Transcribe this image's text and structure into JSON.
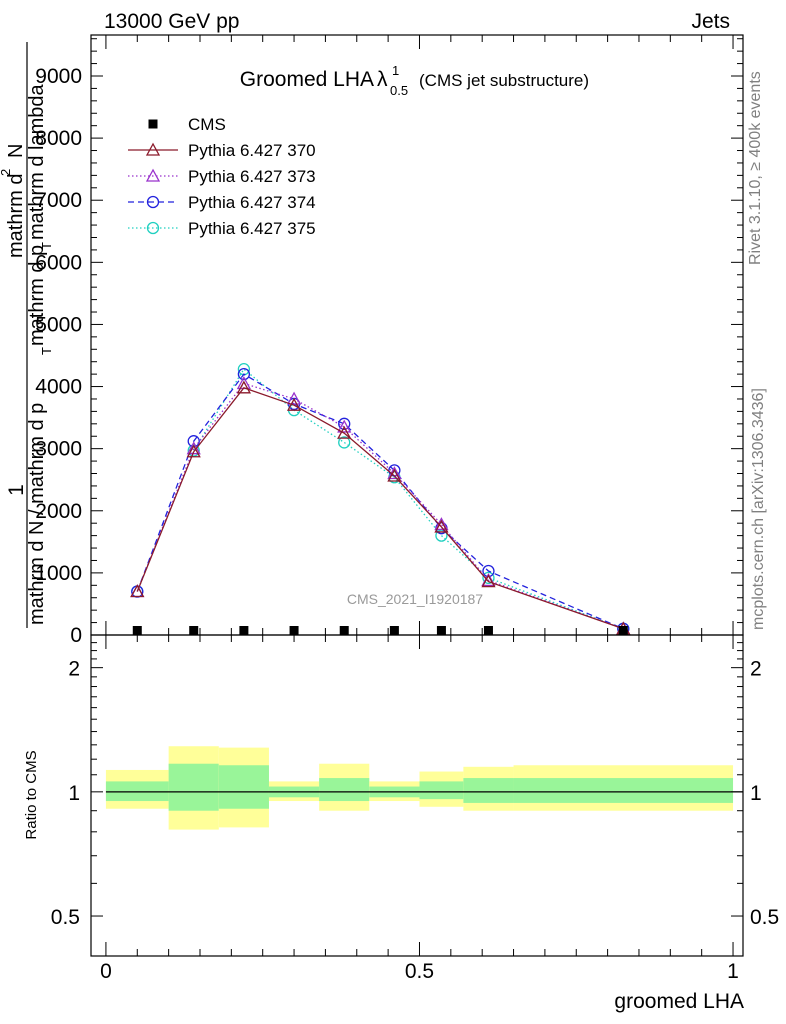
{
  "header": {
    "left_label": "13000 GeV pp",
    "right_label": "Jets"
  },
  "side": {
    "rivet_label": "Rivet 3.1.10, ≥ 400k events",
    "mcplots_label": "mcplots.cern.ch [arXiv:1306.3436]"
  },
  "chart_data": [
    {
      "type": "line",
      "title_main": "Groomed LHA",
      "title_symbol": "λ",
      "title_sup": "1",
      "title_sub": "0.5",
      "title_note": "(CMS jet substructure)",
      "watermark": "CMS_2021_I1920187",
      "ylabel_top": "1",
      "ylabel_upper": "mathrm d",
      "ylabel_sup": "2",
      "ylabel_n": "N",
      "ylabel_lower_a": "mathrm d p",
      "ylabel_lower_t": "T",
      "ylabel_lower_b": " mathrm d lambda",
      "ylabel_den_a": "mathrm d N / mathrm d p",
      "ylabel_den_t": "T",
      "xlim": [
        -0.0238,
        1.0159
      ],
      "ylim": [
        0,
        9660
      ],
      "yticks": [
        {
          "v": 0,
          "label": "0"
        },
        {
          "v": 1000,
          "label": "1000"
        },
        {
          "v": 2000,
          "label": "2000"
        },
        {
          "v": 3000,
          "label": "3000"
        },
        {
          "v": 4000,
          "label": "4000"
        },
        {
          "v": 5000,
          "label": "5000"
        },
        {
          "v": 6000,
          "label": "6000"
        },
        {
          "v": 7000,
          "label": "7000"
        },
        {
          "v": 8000,
          "label": "8000"
        },
        {
          "v": 9000,
          "label": "9000"
        }
      ],
      "x_bins": [
        0.0,
        0.1,
        0.18,
        0.26,
        0.34,
        0.42,
        0.5,
        0.57,
        0.65,
        1.0
      ],
      "x_centers": [
        0.05,
        0.14,
        0.22,
        0.3,
        0.38,
        0.46,
        0.535,
        0.61,
        0.825
      ],
      "legend": [
        {
          "name": "CMS",
          "color": "#000000",
          "marker": "square",
          "dash": ""
        },
        {
          "name": "Pythia 6.427 370",
          "color": "#8b1a2b",
          "marker": "triangle",
          "dash": ""
        },
        {
          "name": "Pythia 6.427 373",
          "color": "#9932cc",
          "marker": "triangle",
          "dash": "1.5,2.5"
        },
        {
          "name": "Pythia 6.427 374",
          "color": "#2222dd",
          "marker": "circle",
          "dash": "6,4"
        },
        {
          "name": "Pythia 6.427 375",
          "color": "#20d0c0",
          "marker": "circle",
          "dash": "1.5,2.5"
        }
      ],
      "series": [
        {
          "name": "CMS",
          "values": [
            5,
            10,
            10,
            15,
            10,
            10,
            10,
            10,
            0
          ]
        },
        {
          "name": "Pythia 6.427 370",
          "values": [
            700,
            2950,
            3980,
            3700,
            3250,
            2560,
            1740,
            860,
            100
          ]
        },
        {
          "name": "Pythia 6.427 373",
          "values": [
            700,
            3000,
            4050,
            3800,
            3350,
            2600,
            1780,
            880,
            100
          ]
        },
        {
          "name": "Pythia 6.427 374",
          "values": [
            700,
            3120,
            4200,
            3720,
            3400,
            2650,
            1720,
            1030,
            100
          ]
        },
        {
          "name": "Pythia 6.427 375",
          "values": [
            700,
            2970,
            4280,
            3620,
            3100,
            2540,
            1600,
            920,
            100
          ]
        }
      ]
    },
    {
      "type": "area",
      "ylabel": "Ratio to CMS",
      "xlabel": "groomed LHA",
      "scale": "log",
      "ylim": [
        0.4,
        2.4
      ],
      "xticks": [
        {
          "v": 0,
          "label": "0"
        },
        {
          "v": 0.5,
          "label": "0.5"
        },
        {
          "v": 1,
          "label": "1"
        }
      ],
      "yticks": [
        {
          "v": 0.5,
          "label": "0.5"
        },
        {
          "v": 1,
          "label": "1"
        },
        {
          "v": 2,
          "label": "2"
        }
      ],
      "band_colors": {
        "outer": "#ffff99",
        "inner": "#99f599"
      },
      "bands": [
        {
          "x0": 0.0,
          "x1": 0.1,
          "outer": [
            0.91,
            1.13
          ],
          "inner": [
            0.95,
            1.06
          ]
        },
        {
          "x0": 0.1,
          "x1": 0.18,
          "outer": [
            0.81,
            1.29
          ],
          "inner": [
            0.9,
            1.17
          ]
        },
        {
          "x0": 0.18,
          "x1": 0.26,
          "outer": [
            0.82,
            1.28
          ],
          "inner": [
            0.91,
            1.16
          ]
        },
        {
          "x0": 0.26,
          "x1": 0.34,
          "outer": [
            0.95,
            1.06
          ],
          "inner": [
            0.97,
            1.03
          ]
        },
        {
          "x0": 0.34,
          "x1": 0.42,
          "outer": [
            0.9,
            1.17
          ],
          "inner": [
            0.95,
            1.08
          ]
        },
        {
          "x0": 0.42,
          "x1": 0.5,
          "outer": [
            0.95,
            1.06
          ],
          "inner": [
            0.97,
            1.03
          ]
        },
        {
          "x0": 0.5,
          "x1": 0.57,
          "outer": [
            0.92,
            1.12
          ],
          "inner": [
            0.96,
            1.06
          ]
        },
        {
          "x0": 0.57,
          "x1": 0.65,
          "outer": [
            0.9,
            1.15
          ],
          "inner": [
            0.94,
            1.08
          ]
        },
        {
          "x0": 0.65,
          "x1": 1.0,
          "outer": [
            0.9,
            1.16
          ],
          "inner": [
            0.94,
            1.08
          ]
        }
      ]
    }
  ]
}
